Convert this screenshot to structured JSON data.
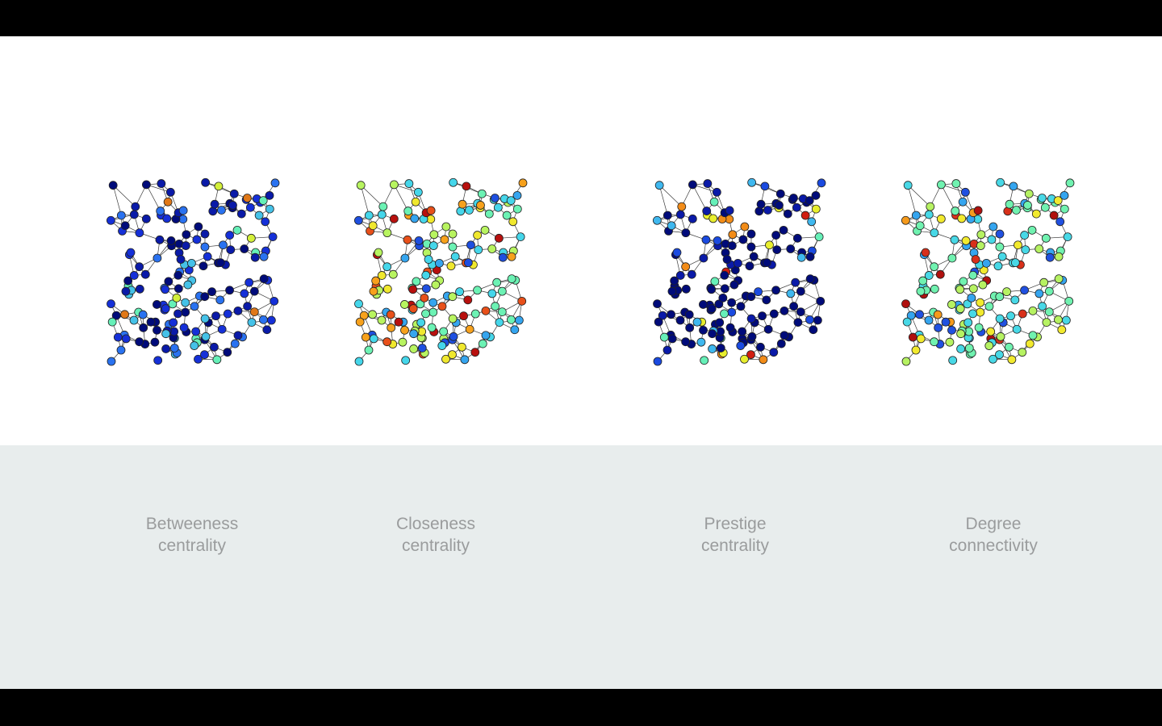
{
  "panels": [
    {
      "id": "betweeness",
      "caption_line1": "Betweeness",
      "caption_line2": "centrality",
      "palette": [
        "#000b7a",
        "#0a1aa8",
        "#1530d8",
        "#2a72f0",
        "#45c2e8",
        "#66f0b8",
        "#d4f03a",
        "#e07818",
        "#8b0c10"
      ],
      "palette_weights": [
        30,
        22,
        20,
        10,
        8,
        5,
        2,
        2,
        1
      ]
    },
    {
      "id": "closeness",
      "caption_line1": "Closeness",
      "caption_line2": "centrality",
      "palette": [
        "#1e4fe0",
        "#35a5ef",
        "#45d6ea",
        "#6cf2b4",
        "#b8f460",
        "#f0e82e",
        "#f7a11c",
        "#e8501a",
        "#b8100e"
      ],
      "palette_weights": [
        6,
        12,
        14,
        18,
        14,
        10,
        10,
        9,
        7
      ]
    },
    {
      "id": "prestige",
      "caption_line1": "Prestige",
      "caption_line2": "centrality",
      "palette": [
        "#000b7a",
        "#0a1aa8",
        "#1a4ae0",
        "#3fb8ef",
        "#66f0b8",
        "#e8ee2e",
        "#f28c18",
        "#d01e10"
      ],
      "palette_weights": [
        55,
        14,
        8,
        6,
        5,
        5,
        4,
        3
      ]
    },
    {
      "id": "degree",
      "caption_line1": "Degree",
      "caption_line2": "connectivity",
      "palette": [
        "#2050e0",
        "#35a5ef",
        "#48d8e6",
        "#70f2b0",
        "#b6f262",
        "#f2ea2e",
        "#f59a1c",
        "#d8301a",
        "#b0100e"
      ],
      "palette_weights": [
        6,
        14,
        16,
        24,
        16,
        10,
        6,
        5,
        3
      ]
    }
  ],
  "colors": {
    "node_stroke": "#222222",
    "edge": "#3a3a3a",
    "caption_text": "#9a9c9d",
    "bottom_panel": "#e8eded"
  }
}
